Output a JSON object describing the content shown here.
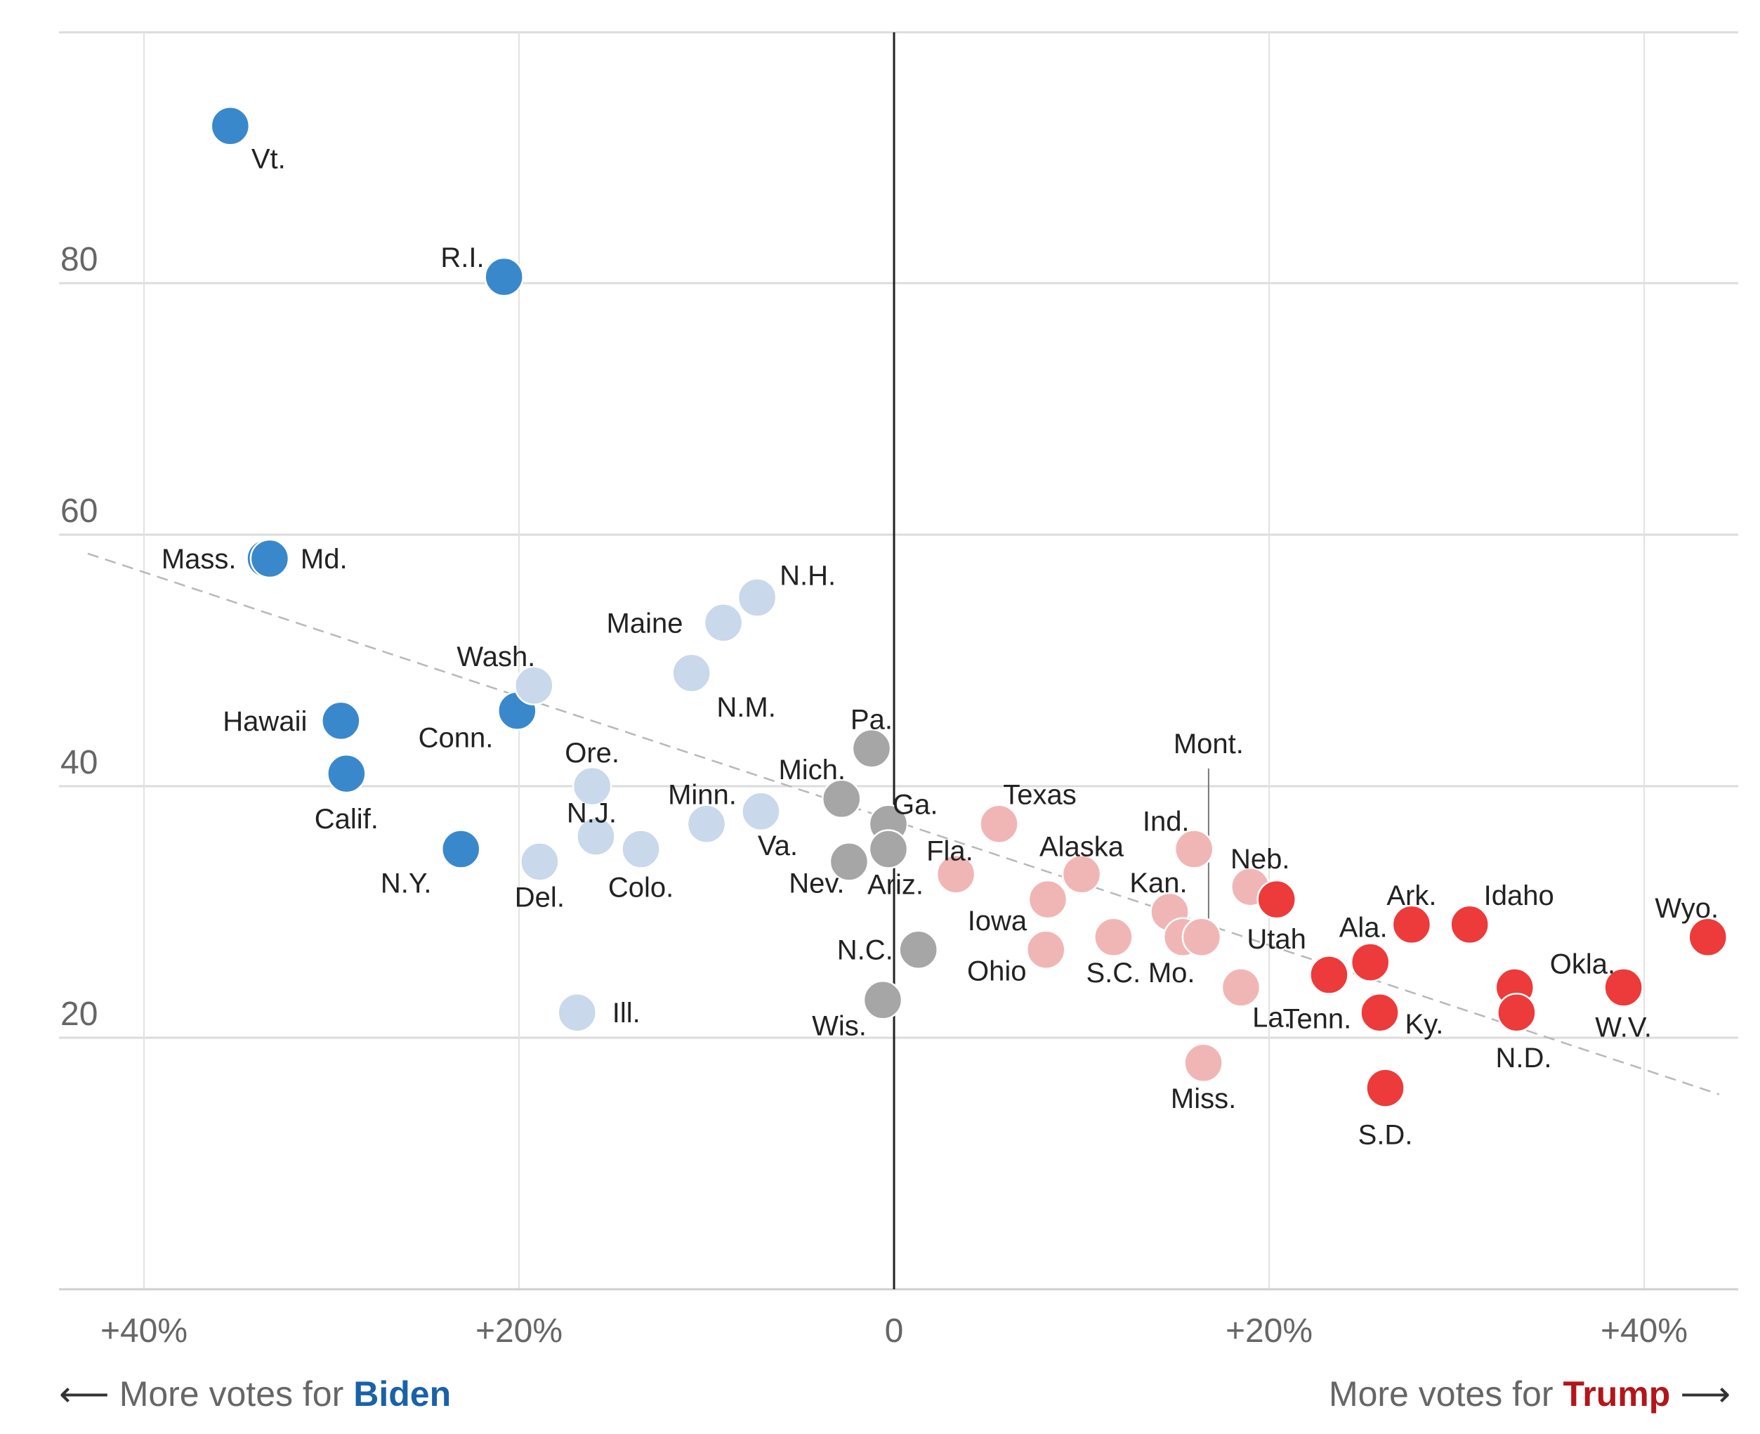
{
  "chart_data": {
    "type": "scatter",
    "title": "",
    "xlabel": "",
    "ylabel": "",
    "xlim": [
      -44,
      45
    ],
    "ylim": [
      0,
      100
    ],
    "x_ticks": [
      {
        "value": -40,
        "label": "+40%"
      },
      {
        "value": -20,
        "label": "+20%"
      },
      {
        "value": 0,
        "label": "0"
      },
      {
        "value": 20,
        "label": "+20%"
      },
      {
        "value": 40,
        "label": "+40%"
      }
    ],
    "y_ticks": [
      {
        "value": 20,
        "label": "20"
      },
      {
        "value": 40,
        "label": "40"
      },
      {
        "value": 60,
        "label": "60"
      },
      {
        "value": 80,
        "label": "80"
      }
    ],
    "grid": true,
    "trend_line": {
      "x": [
        -43,
        44
      ],
      "y": [
        58.5,
        15.5
      ]
    },
    "colors": {
      "solid_biden": "#3a88cc",
      "lean_biden": "#c9d8ea",
      "tossup": "#a6a6a6",
      "lean_trump": "#f0b6b6",
      "solid_trump": "#ed3a3a"
    },
    "points": [
      {
        "label": "Vt.",
        "x": -35.4,
        "y": 92.5,
        "group": "solid_biden"
      },
      {
        "label": "R.I.",
        "x": -20.8,
        "y": 80.5,
        "group": "solid_biden"
      },
      {
        "label": "Mass.",
        "x": -33.5,
        "y": 58.1,
        "group": "solid_biden"
      },
      {
        "label": "Md.",
        "x": -33.3,
        "y": 58.1,
        "group": "solid_biden"
      },
      {
        "label": "Hawaii",
        "x": -29.5,
        "y": 45.2,
        "group": "solid_biden"
      },
      {
        "label": "Conn.",
        "x": -20.1,
        "y": 46.0,
        "group": "solid_biden"
      },
      {
        "label": "Calif.",
        "x": -29.2,
        "y": 41.0,
        "group": "solid_biden"
      },
      {
        "label": "N.Y.",
        "x": -23.1,
        "y": 35.0,
        "group": "solid_biden"
      },
      {
        "label": "Wash.",
        "x": -19.2,
        "y": 48.0,
        "group": "lean_biden"
      },
      {
        "label": "Maine",
        "x": -9.1,
        "y": 53.0,
        "group": "lean_biden"
      },
      {
        "label": "N.H.",
        "x": -7.3,
        "y": 55.0,
        "group": "lean_biden"
      },
      {
        "label": "N.M.",
        "x": -10.8,
        "y": 49.0,
        "group": "lean_biden"
      },
      {
        "label": "Ore.",
        "x": -16.1,
        "y": 40.0,
        "group": "lean_biden"
      },
      {
        "label": "N.J.",
        "x": -15.9,
        "y": 36.0,
        "group": "lean_biden"
      },
      {
        "label": "Del.",
        "x": -18.9,
        "y": 34.0,
        "group": "lean_biden"
      },
      {
        "label": "Colo.",
        "x": -13.5,
        "y": 35.0,
        "group": "lean_biden"
      },
      {
        "label": "Minn.",
        "x": -10.0,
        "y": 37.0,
        "group": "lean_biden"
      },
      {
        "label": "Va.",
        "x": -7.1,
        "y": 38.0,
        "group": "lean_biden"
      },
      {
        "label": "Ill.",
        "x": -16.9,
        "y": 22.0,
        "group": "lean_biden"
      },
      {
        "label": "Pa.",
        "x": -1.2,
        "y": 43.0,
        "group": "tossup"
      },
      {
        "label": "Mich.",
        "x": -2.8,
        "y": 39.0,
        "group": "tossup"
      },
      {
        "label": "Ga.",
        "x": -0.3,
        "y": 37.0,
        "group": "tossup"
      },
      {
        "label": "Ariz.",
        "x": -0.3,
        "y": 35.0,
        "group": "tossup"
      },
      {
        "label": "Nev.",
        "x": -2.4,
        "y": 34.0,
        "group": "tossup"
      },
      {
        "label": "N.C.",
        "x": 1.3,
        "y": 27.0,
        "group": "tossup"
      },
      {
        "label": "Wis.",
        "x": -0.6,
        "y": 23.0,
        "group": "tossup"
      },
      {
        "label": "Fla.",
        "x": 3.3,
        "y": 33.0,
        "group": "lean_trump"
      },
      {
        "label": "Texas",
        "x": 5.6,
        "y": 37.0,
        "group": "lean_trump"
      },
      {
        "label": "Iowa",
        "x": 8.2,
        "y": 31.0,
        "group": "lean_trump"
      },
      {
        "label": "Ohio",
        "x": 8.1,
        "y": 27.0,
        "group": "lean_trump"
      },
      {
        "label": "Alaska",
        "x": 10.0,
        "y": 33.0,
        "group": "lean_trump"
      },
      {
        "label": "S.C.",
        "x": 11.7,
        "y": 28.0,
        "group": "lean_trump"
      },
      {
        "label": "Kan.",
        "x": 14.7,
        "y": 30.0,
        "group": "lean_trump"
      },
      {
        "label": "Mo.",
        "x": 15.4,
        "y": 28.0,
        "group": "lean_trump"
      },
      {
        "label": "Ind.",
        "x": 16.0,
        "y": 35.0,
        "group": "lean_trump"
      },
      {
        "label": "Mont.",
        "x": 16.4,
        "y": 28.0,
        "group": "lean_trump"
      },
      {
        "label": "Miss.",
        "x": 16.5,
        "y": 18.0,
        "group": "lean_trump"
      },
      {
        "label": "La.",
        "x": 18.5,
        "y": 24.0,
        "group": "lean_trump"
      },
      {
        "label": "Neb.",
        "x": 19.0,
        "y": 32.0,
        "group": "lean_trump"
      },
      {
        "label": "Utah",
        "x": 20.4,
        "y": 31.0,
        "group": "solid_trump"
      },
      {
        "label": "Tenn.",
        "x": 23.2,
        "y": 25.0,
        "group": "solid_trump"
      },
      {
        "label": "Ala.",
        "x": 25.4,
        "y": 26.0,
        "group": "solid_trump"
      },
      {
        "label": "Ky.",
        "x": 25.9,
        "y": 22.0,
        "group": "solid_trump"
      },
      {
        "label": "S.D.",
        "x": 26.2,
        "y": 16.0,
        "group": "solid_trump"
      },
      {
        "label": "Ark.",
        "x": 27.6,
        "y": 29.0,
        "group": "solid_trump"
      },
      {
        "label": "Idaho",
        "x": 30.7,
        "y": 29.0,
        "group": "solid_trump"
      },
      {
        "label": "Okla.",
        "x": 33.1,
        "y": 24.0,
        "group": "solid_trump"
      },
      {
        "label": "N.D.",
        "x": 33.2,
        "y": 22.0,
        "group": "solid_trump"
      },
      {
        "label": "W.V.",
        "x": 38.9,
        "y": 24.0,
        "group": "solid_trump"
      },
      {
        "label": "Wyo.",
        "x": 43.4,
        "y": 28.0,
        "group": "solid_trump"
      }
    ]
  },
  "footer": {
    "left_arrow": "⟵",
    "left_prefix": "More votes for",
    "left_name": "Biden",
    "right_prefix": "More votes for",
    "right_name": "Trump",
    "right_arrow": "⟶"
  }
}
